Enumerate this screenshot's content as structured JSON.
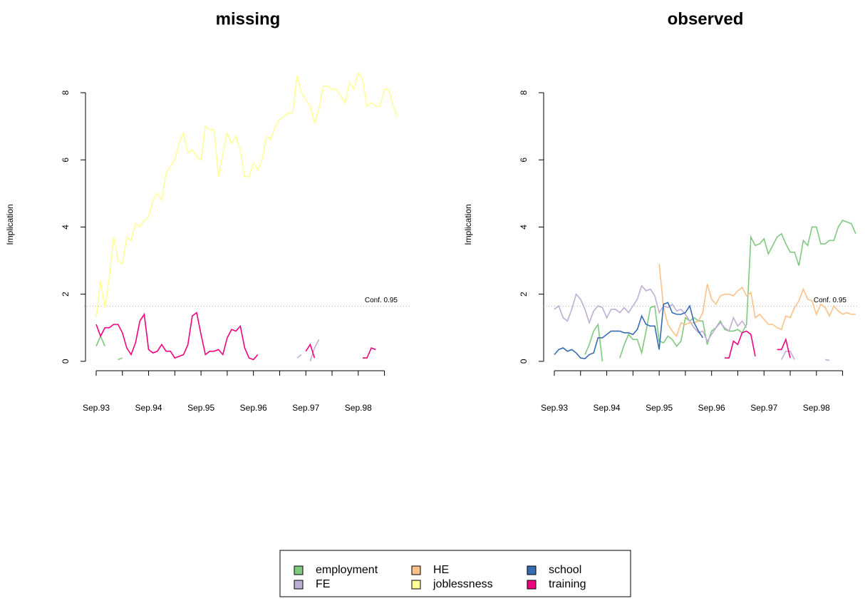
{
  "chart_data": [
    {
      "type": "line",
      "title": "missing",
      "ylabel": "Implication",
      "categories": [
        "Sep.93",
        null,
        null,
        null,
        null,
        null,
        null,
        null,
        null,
        null,
        null,
        null,
        "Sep.94",
        null,
        null,
        null,
        null,
        null,
        null,
        null,
        null,
        null,
        null,
        null,
        "Sep.95",
        null,
        null,
        null,
        null,
        null,
        null,
        null,
        null,
        null,
        null,
        null,
        "Sep.96",
        null,
        null,
        null,
        null,
        null,
        null,
        null,
        null,
        null,
        null,
        null,
        "Sep.97",
        null,
        null,
        null,
        null,
        null,
        null,
        null,
        null,
        null,
        null,
        null,
        "Sep.98",
        null,
        null,
        null,
        null,
        null,
        null,
        null,
        null,
        null
      ],
      "ylim": [
        -0.28,
        8.85
      ],
      "yticks": [
        0,
        2,
        4,
        6,
        8
      ],
      "conf_level": 1.645,
      "conf_label": "Conf. 0.95",
      "series": [
        {
          "name": "employment",
          "color": "#7fc97f",
          "values": [
            0.45,
            0.75,
            0.45,
            null,
            null,
            0.05,
            0.1,
            null,
            null,
            null,
            null,
            null,
            null,
            null,
            null,
            null,
            null,
            null,
            null,
            null,
            null,
            null,
            null,
            null,
            null,
            null,
            null,
            null,
            null,
            null,
            null,
            null,
            null,
            null,
            null,
            null,
            null,
            null,
            null,
            null,
            null,
            null,
            null,
            null,
            null,
            null,
            null,
            null,
            null,
            null,
            null,
            null,
            null,
            null,
            null,
            null,
            null,
            null,
            null,
            null,
            null,
            null,
            null,
            null,
            null,
            null,
            null,
            null,
            null,
            null
          ]
        },
        {
          "name": "FE",
          "color": "#beaed4",
          "values": [
            null,
            null,
            null,
            null,
            null,
            null,
            null,
            null,
            null,
            null,
            null,
            null,
            null,
            null,
            null,
            null,
            null,
            null,
            null,
            null,
            null,
            null,
            null,
            null,
            null,
            null,
            null,
            null,
            null,
            null,
            null,
            null,
            null,
            null,
            null,
            null,
            null,
            null,
            null,
            null,
            null,
            null,
            null,
            null,
            null,
            null,
            0.1,
            0.2,
            null,
            0.0,
            0.4,
            0.65,
            null,
            null,
            null,
            null,
            null,
            null,
            null,
            null,
            null,
            null,
            null,
            null,
            null,
            null,
            null,
            null,
            null,
            null
          ]
        },
        {
          "name": "HE",
          "color": "#fdc086",
          "values": [
            null,
            null,
            null,
            null,
            null,
            null,
            null,
            null,
            null,
            null,
            null,
            null,
            null,
            null,
            null,
            null,
            null,
            null,
            null,
            null,
            null,
            null,
            null,
            null,
            null,
            null,
            null,
            null,
            null,
            null,
            null,
            null,
            null,
            null,
            null,
            null,
            null,
            null,
            null,
            null,
            null,
            null,
            null,
            null,
            null,
            null,
            null,
            null,
            null,
            null,
            null,
            null,
            null,
            null,
            null,
            null,
            null,
            null,
            null,
            null,
            null,
            null,
            null,
            null,
            null,
            null,
            null,
            null,
            null,
            null
          ]
        },
        {
          "name": "joblessness",
          "color": "#ffff99",
          "values": [
            1.3,
            2.4,
            1.6,
            2.5,
            3.7,
            3.0,
            2.9,
            3.7,
            3.6,
            4.1,
            4.0,
            4.2,
            4.3,
            4.8,
            5.0,
            4.8,
            5.6,
            5.8,
            6.0,
            6.5,
            6.8,
            6.2,
            6.3,
            6.1,
            6.0,
            7.0,
            6.9,
            6.9,
            5.5,
            6.2,
            6.8,
            6.5,
            6.7,
            6.3,
            5.5,
            5.5,
            5.9,
            5.7,
            6.0,
            6.7,
            6.6,
            7.0,
            7.2,
            7.3,
            7.4,
            7.4,
            8.5,
            8.0,
            7.8,
            7.6,
            7.1,
            7.5,
            8.2,
            8.2,
            8.1,
            8.1,
            7.9,
            7.7,
            8.3,
            8.1,
            8.6,
            8.4,
            7.6,
            7.7,
            7.6,
            7.6,
            8.1,
            8.1,
            7.6,
            7.3
          ]
        },
        {
          "name": "school",
          "color": "#386cb0",
          "values": [
            null,
            null,
            null,
            null,
            null,
            null,
            null,
            null,
            null,
            null,
            null,
            null,
            null,
            null,
            null,
            null,
            null,
            null,
            null,
            null,
            null,
            null,
            null,
            null,
            null,
            null,
            null,
            null,
            null,
            null,
            null,
            null,
            null,
            null,
            null,
            null,
            null,
            null,
            null,
            null,
            null,
            null,
            null,
            null,
            null,
            null,
            null,
            null,
            null,
            null,
            null,
            null,
            null,
            null,
            null,
            null,
            null,
            null,
            null,
            null,
            null,
            null,
            null,
            null,
            null,
            null,
            null,
            null,
            null,
            null
          ]
        },
        {
          "name": "training",
          "color": "#f0027f",
          "values": [
            1.1,
            0.75,
            1.0,
            1.0,
            1.1,
            1.1,
            0.85,
            0.4,
            0.2,
            0.55,
            1.2,
            1.4,
            0.35,
            0.25,
            0.3,
            0.5,
            0.3,
            0.3,
            0.1,
            0.15,
            0.2,
            0.5,
            1.35,
            1.45,
            0.8,
            0.2,
            0.3,
            0.3,
            0.35,
            0.2,
            0.7,
            0.95,
            0.9,
            1.05,
            0.4,
            0.1,
            0.05,
            0.2,
            null,
            null,
            null,
            null,
            null,
            null,
            null,
            null,
            null,
            null,
            0.3,
            0.5,
            0.1,
            null,
            null,
            null,
            null,
            null,
            null,
            null,
            null,
            null,
            null,
            0.1,
            0.1,
            0.4,
            0.35,
            null,
            null,
            null,
            null,
            null
          ]
        }
      ]
    },
    {
      "type": "line",
      "title": "observed",
      "ylabel": "Implication",
      "categories": [
        "Sep.93",
        null,
        null,
        null,
        null,
        null,
        null,
        null,
        null,
        null,
        null,
        null,
        "Sep.94",
        null,
        null,
        null,
        null,
        null,
        null,
        null,
        null,
        null,
        null,
        null,
        "Sep.95",
        null,
        null,
        null,
        null,
        null,
        null,
        null,
        null,
        null,
        null,
        null,
        "Sep.96",
        null,
        null,
        null,
        null,
        null,
        null,
        null,
        null,
        null,
        null,
        null,
        "Sep.97",
        null,
        null,
        null,
        null,
        null,
        null,
        null,
        null,
        null,
        null,
        null,
        "Sep.98",
        null,
        null,
        null,
        null,
        null,
        null,
        null,
        null,
        null
      ],
      "ylim": [
        -0.28,
        8.85
      ],
      "yticks": [
        0,
        2,
        4,
        6,
        8
      ],
      "conf_level": 1.645,
      "conf_label": "Conf. 0.95",
      "series": [
        {
          "name": "employment",
          "color": "#7fc97f",
          "values": [
            null,
            null,
            null,
            null,
            null,
            null,
            null,
            0.2,
            0.5,
            0.9,
            1.1,
            0.0,
            null,
            null,
            null,
            0.1,
            0.5,
            0.8,
            0.65,
            0.65,
            0.25,
            0.9,
            1.6,
            1.65,
            0.6,
            0.55,
            0.75,
            0.65,
            0.45,
            0.6,
            1.3,
            1.2,
            1.3,
            1.2,
            1.2,
            0.5,
            0.9,
            1.0,
            1.2,
            0.95,
            0.9,
            0.9,
            0.95,
            0.85,
            1.1,
            3.7,
            3.45,
            3.5,
            3.65,
            3.2,
            3.45,
            3.7,
            3.8,
            3.5,
            3.25,
            3.25,
            2.85,
            3.6,
            3.45,
            4.0,
            4.0,
            3.5,
            3.5,
            3.6,
            3.6,
            4.0,
            4.2,
            4.15,
            4.1,
            3.8
          ]
        },
        {
          "name": "FE",
          "color": "#beaed4",
          "values": [
            1.55,
            1.65,
            1.3,
            1.2,
            1.55,
            2.0,
            1.85,
            1.55,
            1.15,
            1.5,
            1.65,
            1.6,
            1.3,
            1.55,
            1.55,
            1.45,
            1.6,
            1.45,
            1.65,
            1.85,
            2.25,
            2.1,
            2.15,
            1.95,
            1.45,
            1.65,
            1.6,
            1.7,
            1.5,
            1.55,
            1.4,
            1.2,
            1.0,
            0.85,
            0.9,
            0.6,
            0.8,
            1.0,
            1.15,
            1.0,
            0.9,
            1.3,
            1.05,
            1.2,
            1.0,
            null,
            null,
            null,
            null,
            null,
            null,
            null,
            0.05,
            0.3,
            0.3,
            0.05,
            null,
            null,
            null,
            null,
            null,
            null,
            0.05,
            0.03,
            null,
            null,
            null,
            null,
            null,
            null
          ]
        },
        {
          "name": "HE",
          "color": "#fdc086",
          "values": [
            null,
            null,
            null,
            null,
            null,
            null,
            null,
            null,
            null,
            null,
            null,
            null,
            null,
            null,
            null,
            null,
            null,
            null,
            null,
            null,
            null,
            null,
            null,
            null,
            2.9,
            1.6,
            1.1,
            0.9,
            0.75,
            1.15,
            1.1,
            1.15,
            1.15,
            1.2,
            1.45,
            2.3,
            1.85,
            1.7,
            1.95,
            2.0,
            2.0,
            1.95,
            2.1,
            2.2,
            1.95,
            2.05,
            1.3,
            1.4,
            1.25,
            1.1,
            1.1,
            1.0,
            0.95,
            1.35,
            1.3,
            1.6,
            1.8,
            2.15,
            1.85,
            1.8,
            1.4,
            1.7,
            1.6,
            1.35,
            1.65,
            1.5,
            1.4,
            1.45,
            1.4,
            1.4
          ]
        },
        {
          "name": "joblessness",
          "color": "#ffff99",
          "values": [
            null,
            null,
            null,
            null,
            null,
            null,
            null,
            null,
            null,
            null,
            null,
            null,
            null,
            null,
            null,
            null,
            null,
            null,
            null,
            null,
            null,
            null,
            null,
            null,
            null,
            null,
            null,
            null,
            null,
            null,
            null,
            null,
            null,
            null,
            null,
            null,
            null,
            null,
            null,
            null,
            null,
            null,
            null,
            null,
            null,
            null,
            null,
            null,
            null,
            null,
            null,
            null,
            null,
            null,
            null,
            null,
            null,
            null,
            null,
            null,
            null,
            null,
            null,
            null,
            null,
            null,
            null,
            null,
            null,
            null
          ]
        },
        {
          "name": "school",
          "color": "#386cb0",
          "values": [
            0.2,
            0.35,
            0.4,
            0.3,
            0.35,
            0.25,
            0.1,
            0.08,
            0.2,
            0.25,
            0.7,
            0.7,
            0.8,
            0.9,
            0.9,
            0.9,
            0.85,
            0.85,
            0.8,
            0.95,
            1.35,
            1.1,
            1.05,
            1.05,
            0.35,
            1.7,
            1.75,
            1.45,
            1.4,
            1.4,
            1.45,
            1.65,
            1.15,
            0.9,
            0.7,
            null,
            null,
            null,
            null,
            null,
            null,
            null,
            null,
            null,
            null,
            null,
            null,
            null,
            null,
            null,
            null,
            null,
            null,
            null,
            null,
            null,
            null,
            null,
            null,
            null,
            null,
            null,
            null,
            null,
            null,
            null,
            null,
            null,
            null,
            null
          ]
        },
        {
          "name": "training",
          "color": "#f0027f",
          "values": [
            null,
            null,
            null,
            null,
            null,
            null,
            null,
            null,
            null,
            null,
            null,
            null,
            null,
            null,
            null,
            null,
            null,
            null,
            null,
            null,
            null,
            null,
            null,
            null,
            null,
            null,
            null,
            null,
            null,
            null,
            null,
            null,
            null,
            null,
            null,
            null,
            null,
            null,
            null,
            0.1,
            0.1,
            0.6,
            0.5,
            0.85,
            0.9,
            0.8,
            0.15,
            null,
            null,
            null,
            null,
            0.35,
            0.35,
            0.65,
            0.1,
            null,
            null,
            null,
            null,
            null,
            null,
            null,
            null,
            null,
            null,
            null,
            null,
            null,
            null,
            null
          ]
        }
      ]
    }
  ]
}
